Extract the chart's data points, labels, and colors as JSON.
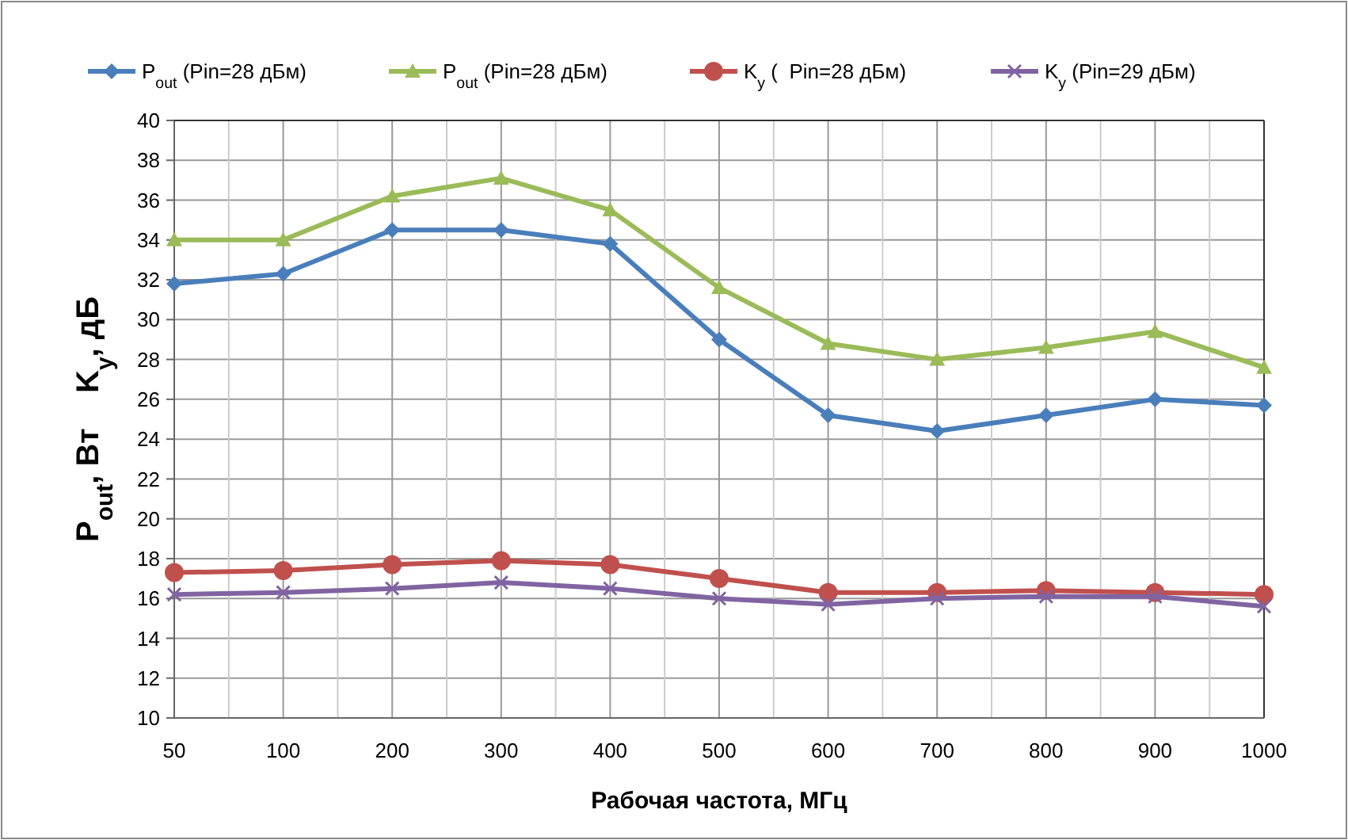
{
  "chart_data": {
    "type": "line",
    "xlabel": "Рабочая частота, МГц",
    "ylabel": "P$_{out}$, Вт    K$_{у}$, дБ",
    "categories": [
      "50",
      "100",
      "200",
      "300",
      "400",
      "500",
      "600",
      "700",
      "800",
      "900",
      "1000"
    ],
    "ylim": [
      10,
      40
    ],
    "yticks": [
      10,
      12,
      14,
      16,
      18,
      20,
      22,
      24,
      26,
      28,
      30,
      32,
      34,
      36,
      38,
      40
    ],
    "grid": true,
    "legend": "top",
    "series": [
      {
        "name": "P$_{out}$ (Pin=28 дБм)",
        "color": "#4a7ebb",
        "marker": "diamond",
        "values": [
          31.8,
          32.3,
          34.5,
          34.5,
          33.8,
          29.0,
          25.2,
          24.4,
          25.2,
          26.0,
          25.7
        ]
      },
      {
        "name": "P$_{out}$ (Pin=28 дБм)",
        "color": "#9bbb59",
        "marker": "triangle",
        "values": [
          34.0,
          34.0,
          36.2,
          37.1,
          35.5,
          31.6,
          28.8,
          28.0,
          28.6,
          29.4,
          27.6
        ]
      },
      {
        "name": "K$_{у}$ (  Pin=28 дБм)",
        "color": "#c0504d",
        "marker": "circle",
        "values": [
          17.3,
          17.4,
          17.7,
          17.9,
          17.7,
          17.0,
          16.3,
          16.3,
          16.4,
          16.3,
          16.2
        ]
      },
      {
        "name": "K$_{у}$ (Pin=29 дБм)",
        "color": "#8064a2",
        "marker": "cross",
        "values": [
          16.2,
          16.3,
          16.5,
          16.8,
          16.5,
          16.0,
          15.7,
          16.0,
          16.1,
          16.1,
          15.6
        ]
      }
    ]
  }
}
